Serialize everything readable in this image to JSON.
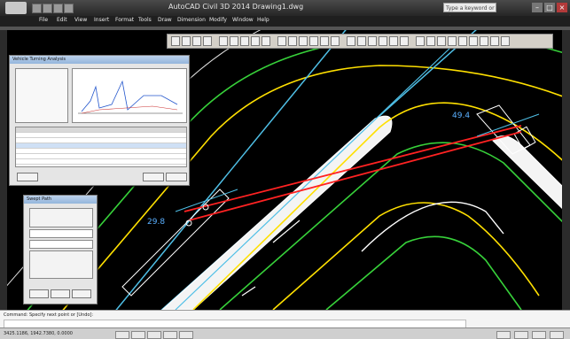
{
  "window": {
    "title": "AutoCAD Civil 3D 2014   Drawing1.dwg"
  },
  "search": {
    "placeholder": "Type a keyword or phrase"
  },
  "menu": [
    {
      "label": "File"
    },
    {
      "label": "Edit"
    },
    {
      "label": "View"
    },
    {
      "label": "Insert"
    },
    {
      "label": "Format"
    },
    {
      "label": "Tools"
    },
    {
      "label": "Draw"
    },
    {
      "label": "Dimension"
    },
    {
      "label": "Modify"
    },
    {
      "label": "Window"
    },
    {
      "label": "Help"
    }
  ],
  "drawing": {
    "dimension_left": "29.8",
    "dimension_right": "49.4",
    "background": "#000000",
    "colors": {
      "curb": "#ffe000",
      "edge": "#37d13a",
      "lane": "#4fbfe6",
      "white": "#ffffff",
      "path": "#ff2222"
    }
  },
  "dialog_main": {
    "title": "Vehicle Turning Analysis"
  },
  "dialog_small": {
    "title": "Swept Path"
  },
  "command": {
    "history": "Command: Specify next point or [Undo]:"
  },
  "status": {
    "coords": "3425.1186, 1942.7380, 0.0000"
  }
}
